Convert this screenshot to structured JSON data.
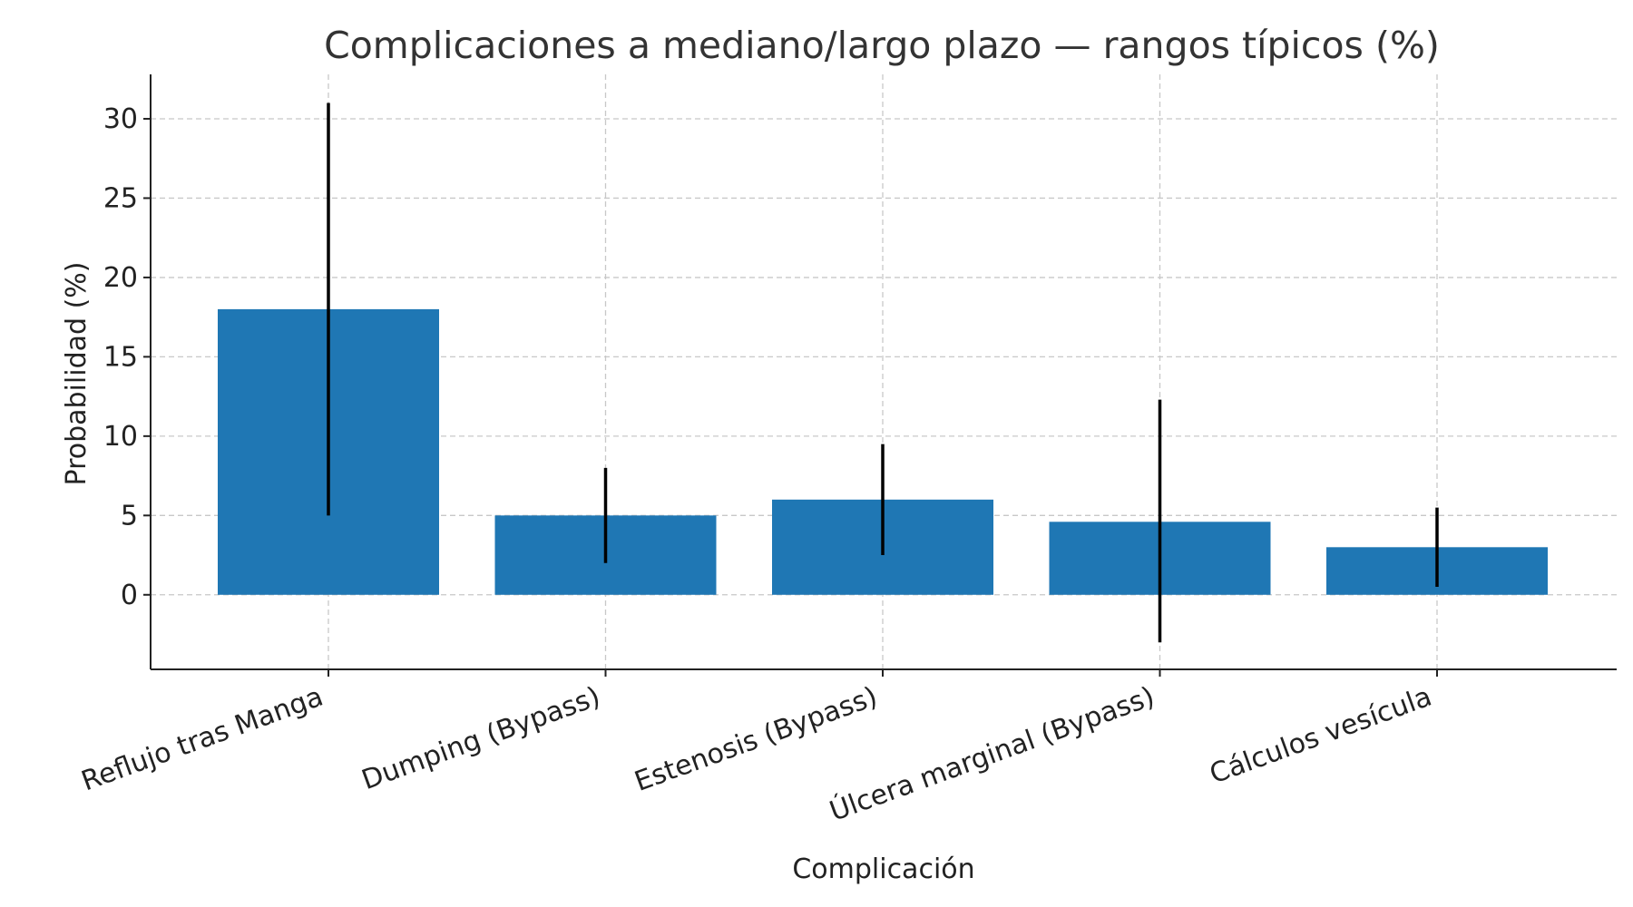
{
  "chart_data": {
    "type": "bar",
    "title": "Complicaciones a mediano/largo plazo — rangos típicos (%)",
    "xlabel": "Complicación",
    "ylabel": "Probabilidad (%)",
    "categories": [
      "Reflujo tras Manga",
      "Dumping (Bypass)",
      "Estenosis (Bypass)",
      "Úlcera marginal (Bypass)",
      "Cálculos vesícula"
    ],
    "values": [
      18,
      5,
      6,
      4.6,
      3
    ],
    "error_ranges": [
      [
        5,
        31
      ],
      [
        2,
        8
      ],
      [
        2.5,
        9.5
      ],
      [
        -3,
        12.3
      ],
      [
        0.5,
        5.5
      ]
    ],
    "ylim": [
      -4.7,
      32.8
    ],
    "yticks": [
      0,
      5,
      10,
      15,
      20,
      25,
      30
    ],
    "grid": true,
    "bar_color": "#1f77b4",
    "error_color": "#000000"
  }
}
